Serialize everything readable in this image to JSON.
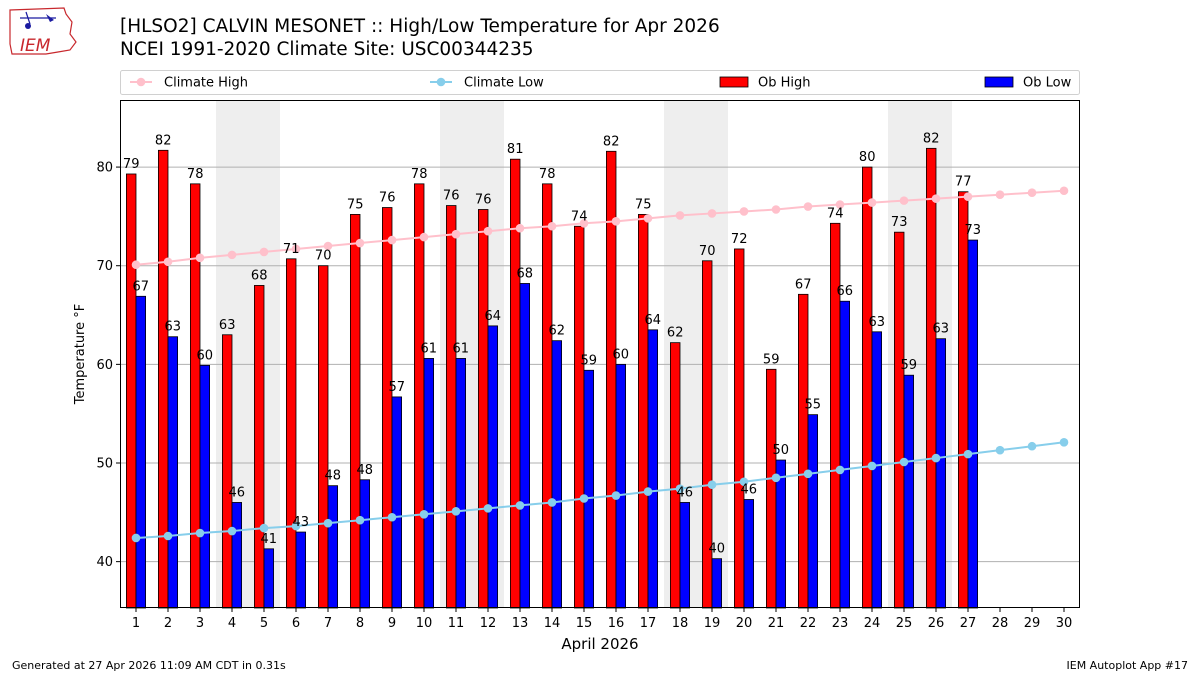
{
  "header": {
    "title_line1": "[HLSO2] CALVIN MESONET :: High/Low Temperature for Apr 2026",
    "title_line2": "NCEI 1991-2020 Climate Site: USC00344235",
    "logo_text": "IEM"
  },
  "footer": {
    "generated": "Generated at 27 Apr 2026 11:09 AM CDT in 0.31s",
    "app": "IEM Autoplot App #17"
  },
  "chart_data": {
    "type": "bar",
    "xlabel": "April 2026",
    "ylabel": "Temperature °F",
    "ylim": [
      35.3,
      86.8
    ],
    "xlim": [
      0.5,
      30.5
    ],
    "yticks": [
      40,
      50,
      60,
      70,
      80
    ],
    "grid": "horizontal",
    "legend_placement": "top",
    "weekend_shading": [
      [
        4,
        5
      ],
      [
        11,
        12
      ],
      [
        18,
        19
      ],
      [
        25,
        26
      ]
    ],
    "categories": [
      1,
      2,
      3,
      4,
      5,
      6,
      7,
      8,
      9,
      10,
      11,
      12,
      13,
      14,
      15,
      16,
      17,
      18,
      19,
      20,
      21,
      22,
      23,
      24,
      25,
      26,
      27,
      28,
      29,
      30
    ],
    "series": [
      {
        "name": "Climate High",
        "kind": "line",
        "color": "#ffc0cb",
        "values": [
          70.1,
          70.4,
          70.8,
          71.1,
          71.4,
          71.7,
          72.0,
          72.3,
          72.6,
          72.9,
          73.2,
          73.5,
          73.8,
          74.0,
          74.3,
          74.5,
          74.8,
          75.1,
          75.3,
          75.5,
          75.7,
          76.0,
          76.2,
          76.4,
          76.6,
          76.8,
          77.0,
          77.2,
          77.4,
          77.6
        ]
      },
      {
        "name": "Climate Low",
        "kind": "line",
        "color": "#87ceeb",
        "values": [
          42.4,
          42.6,
          42.9,
          43.1,
          43.4,
          43.6,
          43.9,
          44.2,
          44.5,
          44.8,
          45.1,
          45.4,
          45.7,
          46.0,
          46.4,
          46.7,
          47.1,
          47.4,
          47.8,
          48.1,
          48.5,
          48.9,
          49.3,
          49.7,
          50.1,
          50.5,
          50.9,
          51.3,
          51.7,
          52.1
        ]
      },
      {
        "name": "Ob High",
        "kind": "bar",
        "color": "#ff0000",
        "values": [
          79.3,
          81.7,
          78.3,
          63.0,
          68.0,
          70.7,
          70.0,
          75.2,
          75.9,
          78.3,
          76.1,
          75.7,
          80.8,
          78.3,
          74.0,
          81.6,
          75.2,
          62.2,
          70.5,
          71.7,
          59.5,
          67.1,
          74.3,
          80.0,
          73.4,
          81.9,
          77.5,
          null,
          null,
          null
        ],
        "labels": [
          "79",
          "82",
          "78",
          "63",
          "68",
          "71",
          "70",
          "75",
          "76",
          "78",
          "76",
          "76",
          "81",
          "78",
          "74",
          "82",
          "75",
          "62",
          "70",
          "72",
          "59",
          "67",
          "74",
          "80",
          "73",
          "82",
          "77",
          "",
          "",
          ""
        ]
      },
      {
        "name": "Ob Low",
        "kind": "bar",
        "color": "#0000ff",
        "values": [
          66.9,
          62.8,
          59.9,
          46.0,
          41.3,
          43.0,
          47.7,
          48.3,
          56.7,
          60.6,
          60.6,
          63.9,
          68.2,
          62.4,
          59.4,
          60.0,
          63.5,
          46.0,
          40.3,
          46.3,
          50.3,
          54.9,
          66.4,
          63.3,
          58.9,
          62.6,
          72.6,
          null,
          null,
          null
        ],
        "labels": [
          "67",
          "63",
          "60",
          "46",
          "41",
          "43",
          "48",
          "48",
          "57",
          "61",
          "61",
          "64",
          "68",
          "62",
          "59",
          "60",
          "64",
          "46",
          "40",
          "46",
          "50",
          "55",
          "66",
          "63",
          "59",
          "63",
          "73",
          "",
          "",
          ""
        ]
      }
    ]
  }
}
